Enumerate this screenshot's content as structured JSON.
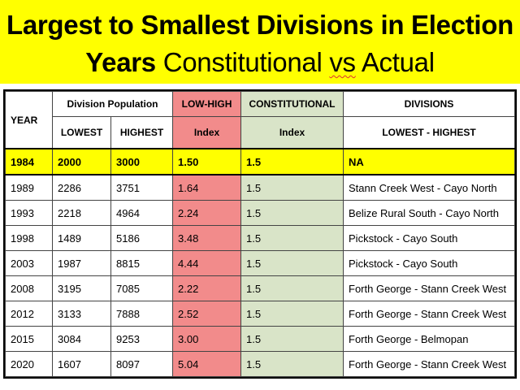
{
  "title": {
    "line1": "Largest to Smallest Divisions in Election",
    "line2_bold": "Years",
    "line2_rest_a": " Constitutional ",
    "line2_vs": "vs",
    "line2_rest_b": " Actual"
  },
  "headers": {
    "year": "YEAR",
    "division_population": "Division Population",
    "lowest": "LOWEST",
    "highest": "HIGHEST",
    "low_high_a": "LOW-HIGH",
    "low_high_b": "Index",
    "constitutional_a": "CONSTITUTIONAL",
    "constitutional_b": "Index",
    "divisions_a": "DIVISIONS",
    "divisions_b": "LOWEST - HIGHEST"
  },
  "colors": {
    "banner": "#ffff00",
    "low_high_column": "#f28b8b",
    "constitutional_column": "#d9e4c8",
    "highlight_row": "#ffff00"
  },
  "rows": [
    {
      "year": "1984",
      "lowest": "2000",
      "highest": "3000",
      "low_high": "1.50",
      "constitutional": "1.5",
      "divisions": "NA"
    },
    {
      "year": "1989",
      "lowest": "2286",
      "highest": "3751",
      "low_high": "1.64",
      "constitutional": "1.5",
      "divisions": "Stann Creek West - Cayo North"
    },
    {
      "year": "1993",
      "lowest": "2218",
      "highest": "4964",
      "low_high": "2.24",
      "constitutional": "1.5",
      "divisions": "Belize Rural South - Cayo North"
    },
    {
      "year": "1998",
      "lowest": "1489",
      "highest": "5186",
      "low_high": "3.48",
      "constitutional": "1.5",
      "divisions": "Pickstock - Cayo South"
    },
    {
      "year": "2003",
      "lowest": "1987",
      "highest": "8815",
      "low_high": "4.44",
      "constitutional": "1.5",
      "divisions": "Pickstock - Cayo South"
    },
    {
      "year": "2008",
      "lowest": "3195",
      "highest": "7085",
      "low_high": "2.22",
      "constitutional": "1.5",
      "divisions": "Forth George - Stann Creek West"
    },
    {
      "year": "2012",
      "lowest": "3133",
      "highest": "7888",
      "low_high": "2.52",
      "constitutional": "1.5",
      "divisions": "Forth George - Stann Creek West"
    },
    {
      "year": "2015",
      "lowest": "3084",
      "highest": "9253",
      "low_high": "3.00",
      "constitutional": "1.5",
      "divisions": "Forth George - Belmopan"
    },
    {
      "year": "2020",
      "lowest": "1607",
      "highest": "8097",
      "low_high": "5.04",
      "constitutional": "1.5",
      "divisions": "Forth George - Stann Creek West"
    }
  ]
}
